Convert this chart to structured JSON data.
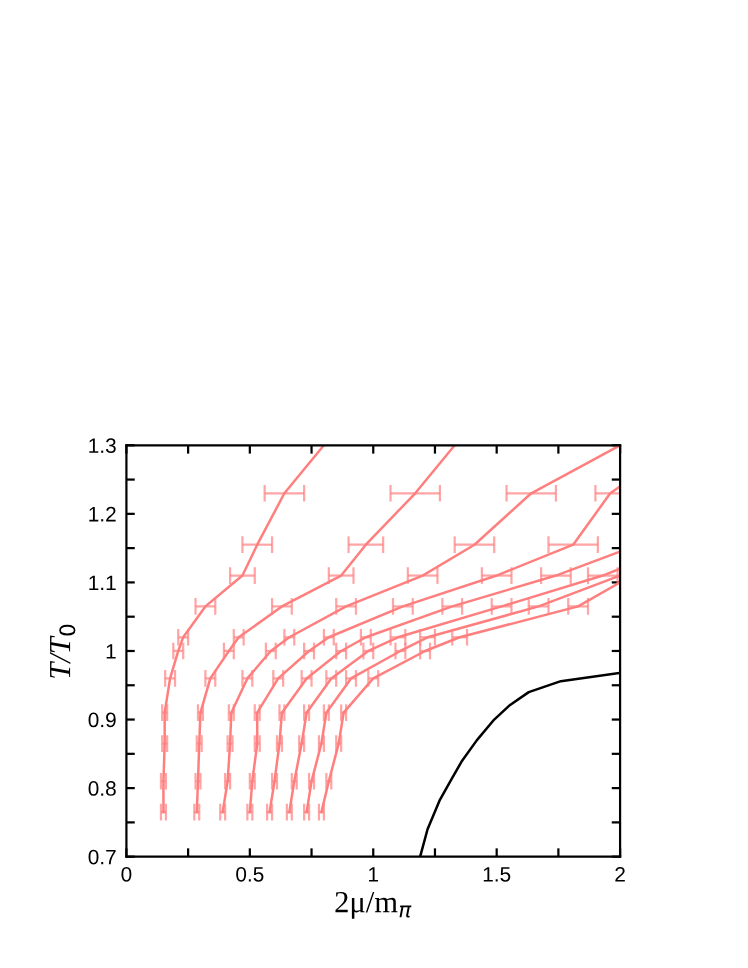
{
  "chart_data": {
    "type": "line",
    "xlabel": "2μ/m$_{π}$",
    "ylabel": "T/T$_{0}$",
    "xlim": [
      0,
      2
    ],
    "ylim": [
      0.7,
      1.3
    ],
    "xticks": [
      0,
      {
        "value": 0.25,
        "label": null
      },
      0.5,
      {
        "value": 0.75,
        "label": null
      },
      1,
      {
        "value": 1.25,
        "label": null
      },
      1.5,
      {
        "value": 1.75,
        "label": null
      },
      2
    ],
    "yticks": [
      0.7,
      {
        "value": 0.75,
        "label": null
      },
      0.8,
      {
        "value": 0.85,
        "label": null
      },
      0.9,
      {
        "value": 0.95,
        "label": null
      },
      1,
      {
        "value": 1.05,
        "label": null
      },
      1.1,
      {
        "value": 1.15,
        "label": null
      },
      1.2,
      {
        "value": 1.25,
        "label": null
      },
      1.3
    ],
    "grid": false,
    "marker": "none",
    "line_style": "solid",
    "series": [
      {
        "color": "#ff7f7f",
        "x": [
          0.15,
          0.15,
          0.155,
          0.155,
          0.177,
          0.21,
          0.23,
          0.32,
          0.47,
          0.53,
          0.64,
          0.8
        ],
        "values": [
          0.765,
          0.81,
          0.865,
          0.91,
          0.96,
          1.0,
          1.02,
          1.065,
          1.11,
          1.155,
          1.23,
          1.3
        ],
        "xerrors": [
          0.01,
          0.01,
          0.01,
          0.01,
          0.02,
          0.02,
          0.02,
          0.04,
          0.05,
          0.06,
          0.08,
          null
        ]
      },
      {
        "color": "#ff7f7f",
        "x": [
          0.285,
          0.29,
          0.295,
          0.3,
          0.34,
          0.415,
          0.455,
          0.63,
          0.87,
          0.97,
          1.17,
          1.33
        ],
        "values": [
          0.765,
          0.81,
          0.865,
          0.91,
          0.96,
          1.0,
          1.02,
          1.065,
          1.11,
          1.155,
          1.23,
          1.3
        ],
        "xerrors": [
          0.01,
          0.01,
          0.01,
          0.01,
          0.02,
          0.02,
          0.02,
          0.04,
          0.05,
          0.07,
          0.1,
          null
        ]
      },
      {
        "color": "#ff7f7f",
        "x": [
          0.39,
          0.41,
          0.42,
          0.425,
          0.49,
          0.585,
          0.66,
          0.89,
          1.2,
          1.41,
          1.64,
          2.0
        ],
        "values": [
          0.765,
          0.81,
          0.865,
          0.91,
          0.96,
          1.0,
          1.02,
          1.065,
          1.11,
          1.155,
          1.23,
          1.3
        ],
        "xerrors": [
          0.01,
          0.01,
          0.01,
          0.01,
          0.02,
          0.02,
          0.02,
          0.04,
          0.06,
          0.08,
          0.1,
          null
        ]
      },
      {
        "color": "#ff7f7f",
        "x": [
          0.5,
          0.51,
          0.53,
          0.53,
          0.615,
          0.74,
          0.82,
          1.12,
          1.5,
          1.81,
          1.96,
          2.0
        ],
        "values": [
          0.765,
          0.81,
          0.865,
          0.91,
          0.96,
          1.0,
          1.02,
          1.065,
          1.11,
          1.155,
          1.23,
          1.24
        ],
        "xerrors": [
          0.01,
          0.01,
          0.01,
          0.01,
          0.02,
          0.02,
          0.02,
          0.04,
          0.06,
          0.1,
          0.06,
          null
        ]
      },
      {
        "color": "#ff7f7f",
        "x": [
          0.58,
          0.6,
          0.62,
          0.63,
          0.73,
          0.87,
          0.97,
          1.32,
          1.74,
          2.0
        ],
        "values": [
          0.765,
          0.81,
          0.865,
          0.91,
          0.96,
          1.0,
          1.02,
          1.065,
          1.11,
          1.145
        ],
        "xerrors": [
          0.01,
          0.01,
          0.01,
          0.01,
          0.02,
          0.02,
          0.02,
          0.04,
          0.06,
          null
        ]
      },
      {
        "color": "#ff7f7f",
        "x": [
          0.66,
          0.68,
          0.71,
          0.73,
          0.83,
          0.98,
          1.1,
          1.52,
          1.93,
          2.0
        ],
        "values": [
          0.765,
          0.81,
          0.865,
          0.91,
          0.96,
          1.0,
          1.02,
          1.065,
          1.11,
          1.12
        ],
        "xerrors": [
          0.01,
          0.01,
          0.01,
          0.01,
          0.02,
          0.02,
          0.03,
          0.04,
          0.06,
          null
        ]
      },
      {
        "color": "#ff7f7f",
        "x": [
          0.73,
          0.75,
          0.79,
          0.81,
          0.91,
          1.11,
          1.22,
          1.67,
          2.0
        ],
        "values": [
          0.765,
          0.81,
          0.865,
          0.91,
          0.96,
          1.0,
          1.02,
          1.065,
          1.11
        ],
        "xerrors": [
          0.01,
          0.01,
          0.01,
          0.01,
          0.02,
          0.02,
          0.03,
          0.04,
          null
        ]
      },
      {
        "color": "#ff7f7f",
        "x": [
          0.79,
          0.82,
          0.86,
          0.88,
          1.0,
          1.21,
          1.35,
          1.83,
          2.0
        ],
        "values": [
          0.765,
          0.81,
          0.865,
          0.91,
          0.96,
          1.0,
          1.02,
          1.065,
          1.1
        ],
        "xerrors": [
          0.01,
          0.01,
          0.01,
          0.01,
          0.02,
          0.02,
          0.03,
          0.04,
          null
        ]
      },
      {
        "color": "#000000",
        "x": [
          1.19,
          1.22,
          1.27,
          1.32,
          1.36,
          1.42,
          1.49,
          1.55,
          1.63,
          1.76,
          2.0
        ],
        "values": [
          0.7,
          0.74,
          0.783,
          0.815,
          0.84,
          0.87,
          0.9,
          0.92,
          0.94,
          0.956,
          0.968
        ]
      }
    ]
  }
}
